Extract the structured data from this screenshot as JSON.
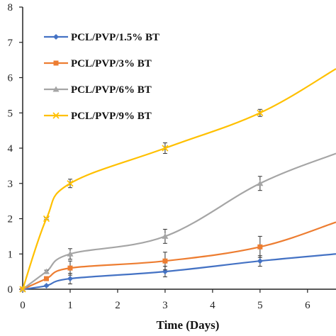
{
  "chart_data": {
    "type": "line",
    "xlabel": "Time (Days)",
    "ylabel": "",
    "xlim": [
      0,
      6.6
    ],
    "ylim": [
      0,
      8
    ],
    "x_ticks": [
      "0",
      "1",
      "2",
      "3",
      "4",
      "5",
      "6"
    ],
    "y_ticks": [
      "0",
      "1",
      "2",
      "3",
      "4",
      "5",
      "6",
      "7",
      "8"
    ],
    "grid": false,
    "legend_position": "top-left",
    "series": [
      {
        "name": "PCL/PVP/1.5% BT",
        "color": "#4472C4",
        "marker": "diamond",
        "x": [
          0,
          0.5,
          1,
          3,
          5,
          6.6
        ],
        "y": [
          0,
          0.1,
          0.3,
          0.5,
          0.8,
          1.0
        ],
        "errors": [
          0,
          0.02,
          0.15,
          0.15,
          0.15,
          0
        ]
      },
      {
        "name": "PCL/PVP/3% BT",
        "color": "#ED7D31",
        "marker": "square",
        "x": [
          0,
          0.5,
          1,
          3,
          5,
          6.6
        ],
        "y": [
          0,
          0.3,
          0.6,
          0.8,
          1.2,
          1.9
        ],
        "errors": [
          0,
          0.03,
          0.2,
          0.25,
          0.3,
          0
        ]
      },
      {
        "name": "PCL/PVP/6% BT",
        "color": "#A5A5A5",
        "marker": "triangle",
        "x": [
          0,
          0.5,
          1,
          3,
          5,
          6.6
        ],
        "y": [
          0,
          0.5,
          1.0,
          1.5,
          3.0,
          3.85
        ],
        "errors": [
          0,
          0.04,
          0.15,
          0.2,
          0.2,
          0
        ]
      },
      {
        "name": "PCL/PVP/9% BT",
        "color": "#FFC000",
        "marker": "x",
        "x": [
          0,
          0.5,
          1,
          3,
          5,
          6.6
        ],
        "y": [
          0,
          2.0,
          3.0,
          4.0,
          5.0,
          6.25
        ],
        "errors": [
          0,
          0.02,
          0.12,
          0.15,
          0.1,
          0
        ]
      }
    ]
  }
}
